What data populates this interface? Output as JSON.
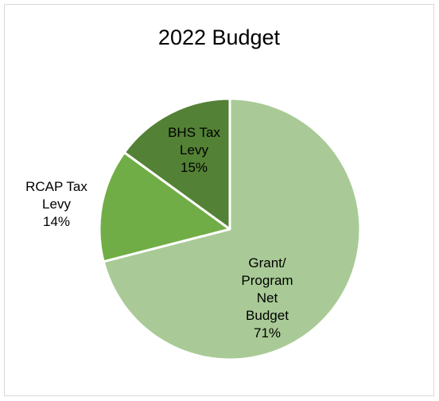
{
  "chart_data": {
    "type": "pie",
    "title": "2022 Budget",
    "start_angle_deg": 0,
    "direction": "clockwise",
    "slices": [
      {
        "label_lines": [
          "Grant/",
          "Program",
          "Net",
          "Budget"
        ],
        "percent_label": "71%",
        "value": 71,
        "color": "#a9ca96"
      },
      {
        "label_lines": [
          "RCAP Tax",
          "Levy"
        ],
        "percent_label": "14%",
        "value": 14,
        "color": "#71ad46"
      },
      {
        "label_lines": [
          "BHS Tax",
          "Levy"
        ],
        "percent_label": "15%",
        "value": 15,
        "color": "#538135"
      }
    ],
    "legend": "none"
  }
}
